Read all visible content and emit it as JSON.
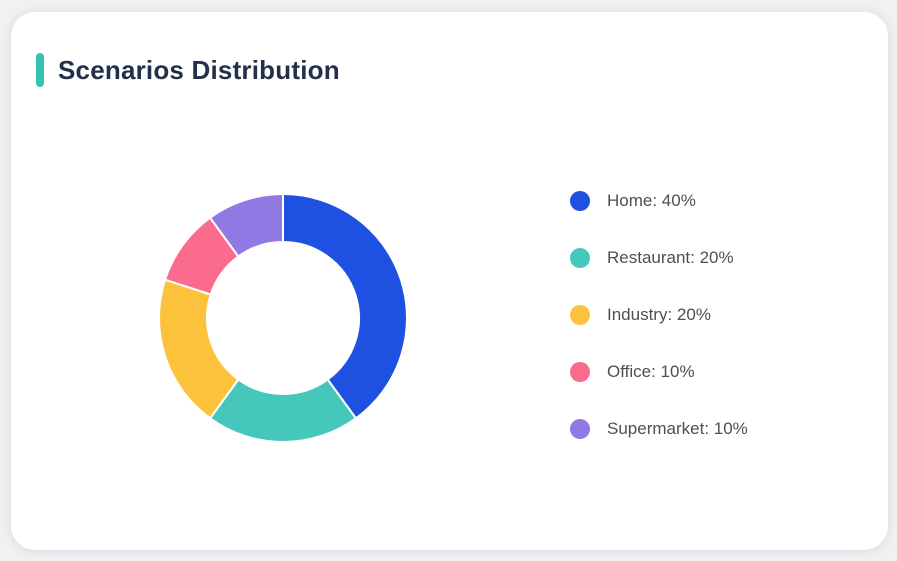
{
  "card": {
    "title": "Scenarios Distribution"
  },
  "theme": {
    "page_bg": "#F0F1F2",
    "card_bg": "#FFFFFF",
    "accent_bar": "#35C2B2",
    "title_color": "#233049",
    "legend_text_color": "#4F4F4F"
  },
  "chart_data": {
    "type": "pie",
    "subtype": "donut",
    "title": "Scenarios Distribution",
    "start_angle": "top",
    "direction": "clockwise",
    "inner_radius_ratio": 0.61,
    "slice_border_color": "#FFFFFF",
    "legend_position": "right",
    "legend_label_format": "{label}: {value}%",
    "series": [
      {
        "label": "Home",
        "value": 40,
        "color": "#1E50E2"
      },
      {
        "label": "Restaurant",
        "value": 20,
        "color": "#45C8BB"
      },
      {
        "label": "Industry",
        "value": 20,
        "color": "#FDC23C"
      },
      {
        "label": "Office",
        "value": 10,
        "color": "#FB6B8D"
      },
      {
        "label": "Supermarket",
        "value": 10,
        "color": "#9179E4"
      }
    ]
  }
}
